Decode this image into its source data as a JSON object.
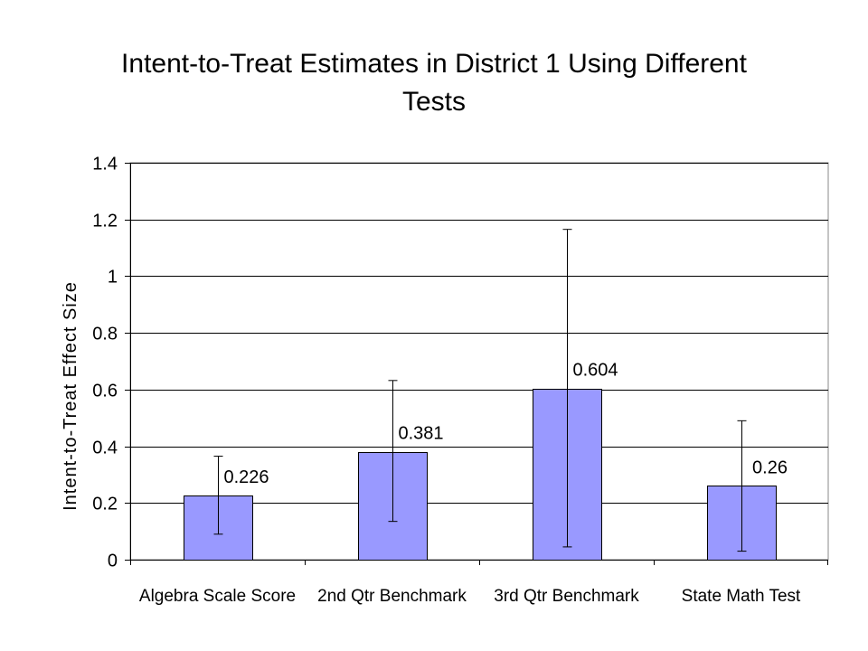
{
  "chart_data": {
    "type": "bar",
    "title": "Intent-to-Treat Estimates in District 1 Using Different Tests",
    "xlabel": "",
    "ylabel": "Intent-to-Treat Effect Size",
    "categories": [
      "Algebra Scale Score",
      "2nd Qtr Benchmark",
      "3rd Qtr Benchmark",
      "State Math Test"
    ],
    "values": [
      0.226,
      0.381,
      0.604,
      0.26
    ],
    "value_labels": [
      "0.226",
      "0.381",
      "0.604",
      "0.26"
    ],
    "error_low": [
      0.09,
      0.135,
      0.045,
      0.03
    ],
    "error_high": [
      0.365,
      0.632,
      1.165,
      0.49
    ],
    "ylim": [
      0,
      1.4
    ],
    "yticks": [
      0,
      0.2,
      0.4,
      0.6,
      0.8,
      1,
      1.2,
      1.4
    ],
    "ytick_labels": [
      "0",
      "0.2",
      "0.4",
      "0.6",
      "0.8",
      "1",
      "1.2",
      "1.4"
    ],
    "grid": true,
    "legend": "none",
    "colors": {
      "bar_fill": "#9999ff",
      "bar_stroke": "#000000",
      "grid": "#000000",
      "plot_background": "#ffffff"
    }
  }
}
